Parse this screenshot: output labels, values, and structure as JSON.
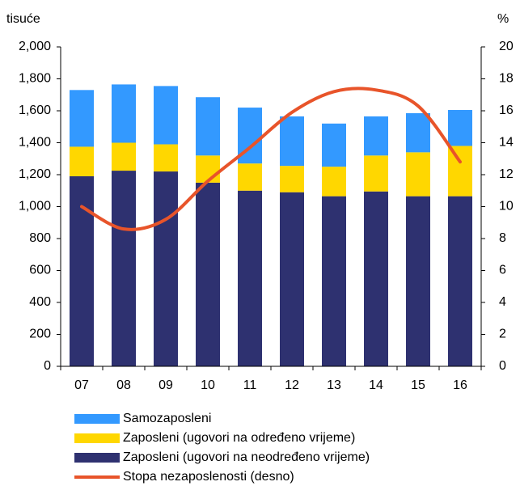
{
  "chart_data": {
    "type": "bar",
    "ylabel": "tisuće",
    "y2label": "%",
    "categories": [
      "07",
      "08",
      "09",
      "10",
      "11",
      "12",
      "13",
      "14",
      "15",
      "16"
    ],
    "series": [
      {
        "name": "Samozaposleni",
        "color": "#3399ff",
        "values": [
          355,
          365,
          365,
          365,
          350,
          310,
          270,
          245,
          245,
          225
        ]
      },
      {
        "name": "Zaposleni (ugovori na određeno vrijeme)",
        "color": "#ffd700",
        "values": [
          185,
          175,
          170,
          170,
          170,
          165,
          185,
          225,
          275,
          315
        ]
      },
      {
        "name": "Zaposleni (ugovori na neodređeno vrijeme)",
        "color": "#2e3170",
        "values": [
          1190,
          1225,
          1220,
          1150,
          1100,
          1090,
          1065,
          1095,
          1065,
          1065
        ]
      },
      {
        "name": "Stopa nezaposlenosti (desno)",
        "color": "#e8542a",
        "type": "line",
        "axis": "y2",
        "values": [
          10.0,
          8.6,
          9.2,
          11.6,
          13.7,
          15.9,
          17.2,
          17.3,
          16.3,
          12.8
        ]
      }
    ],
    "ylim": [
      0,
      2000
    ],
    "yticks": [
      0,
      200,
      400,
      600,
      800,
      {
        "value": 1000,
        "label": "1,000"
      },
      {
        "value": 1200,
        "label": "1,200"
      },
      {
        "value": 1400,
        "label": "1,400"
      },
      {
        "value": 1600,
        "label": "1,600"
      },
      {
        "value": 1800,
        "label": "1,800"
      },
      {
        "value": 2000,
        "label": "2,000"
      }
    ],
    "y2lim": [
      0,
      20
    ],
    "y2ticks": [
      0,
      2,
      4,
      6,
      8,
      10,
      12,
      14,
      16,
      18,
      20
    ]
  }
}
